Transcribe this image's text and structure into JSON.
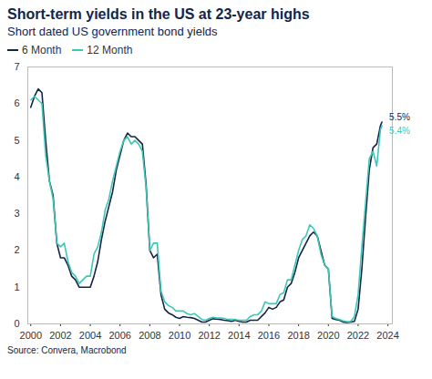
{
  "chart_data": {
    "type": "line",
    "title": "Short-term yields in the US at 23-year highs",
    "subtitle": "Short dated US government bond yields",
    "caption": "Source: Convera, Macrobond",
    "legend": "top-left",
    "grid": false,
    "data_labels": true,
    "x": [
      2000,
      2000.25,
      2000.5,
      2000.75,
      2001,
      2001.25,
      2001.5,
      2001.75,
      2002,
      2002.25,
      2002.5,
      2002.75,
      2003,
      2003.25,
      2003.5,
      2003.75,
      2004,
      2004.25,
      2004.5,
      2004.75,
      2005,
      2005.25,
      2005.5,
      2005.75,
      2006,
      2006.25,
      2006.5,
      2006.75,
      2007,
      2007.25,
      2007.5,
      2007.75,
      2008,
      2008.25,
      2008.5,
      2008.75,
      2009,
      2009.25,
      2009.5,
      2009.75,
      2010,
      2010.25,
      2010.5,
      2010.75,
      2011,
      2011.25,
      2011.5,
      2011.75,
      2012,
      2012.25,
      2012.5,
      2012.75,
      2013,
      2013.25,
      2013.5,
      2013.75,
      2014,
      2014.25,
      2014.5,
      2014.75,
      2015,
      2015.25,
      2015.5,
      2015.75,
      2016,
      2016.25,
      2016.5,
      2016.75,
      2017,
      2017.25,
      2017.5,
      2017.75,
      2018,
      2018.25,
      2018.5,
      2018.75,
      2019,
      2019.25,
      2019.5,
      2019.75,
      2020,
      2020.25,
      2020.5,
      2020.75,
      2021,
      2021.25,
      2021.5,
      2021.75,
      2022,
      2022.25,
      2022.5,
      2022.75,
      2023,
      2023.25,
      2023.5,
      2023.6
    ],
    "xlim": [
      1999.8,
      2024.3
    ],
    "xticks": [
      2000,
      2002,
      2004,
      2006,
      2008,
      2010,
      2012,
      2014,
      2016,
      2018,
      2020,
      2022,
      2024
    ],
    "ylim": [
      0,
      7
    ],
    "yticks": [
      0,
      1,
      2,
      3,
      4,
      5,
      6,
      7
    ],
    "series": [
      {
        "name": "6 Month",
        "color": "#14244a",
        "values": [
          5.9,
          6.2,
          6.4,
          6.3,
          5.0,
          3.9,
          3.5,
          2.2,
          1.8,
          1.8,
          1.6,
          1.3,
          1.2,
          1.0,
          1.0,
          1.0,
          1.0,
          1.3,
          1.7,
          2.3,
          2.8,
          3.2,
          3.6,
          4.2,
          4.6,
          5.0,
          5.2,
          5.1,
          5.1,
          5.0,
          4.9,
          3.8,
          2.0,
          1.8,
          1.9,
          0.8,
          0.4,
          0.3,
          0.25,
          0.18,
          0.15,
          0.2,
          0.18,
          0.17,
          0.15,
          0.1,
          0.05,
          0.05,
          0.1,
          0.14,
          0.13,
          0.12,
          0.1,
          0.09,
          0.07,
          0.1,
          0.07,
          0.05,
          0.05,
          0.1,
          0.1,
          0.1,
          0.2,
          0.3,
          0.45,
          0.4,
          0.45,
          0.6,
          0.65,
          1.0,
          1.1,
          1.4,
          1.8,
          2.0,
          2.2,
          2.4,
          2.5,
          2.4,
          2.0,
          1.6,
          1.5,
          0.15,
          0.12,
          0.1,
          0.05,
          0.04,
          0.05,
          0.07,
          0.4,
          1.5,
          2.9,
          4.2,
          4.8,
          4.9,
          5.4,
          5.5
        ],
        "value_labels": [
          null,
          null,
          null,
          null,
          null,
          null,
          null,
          null,
          null,
          null,
          null,
          null,
          null,
          null,
          null,
          null,
          null,
          null,
          null,
          null,
          null,
          null,
          null,
          null,
          null,
          null,
          null,
          null,
          null,
          null,
          null,
          null,
          null,
          null,
          null,
          null,
          null,
          null,
          null,
          null,
          null,
          null,
          null,
          null,
          null,
          null,
          null,
          null,
          null,
          null,
          null,
          null,
          null,
          null,
          null,
          null,
          null,
          null,
          null,
          null,
          null,
          null,
          null,
          null,
          null,
          null,
          null,
          null,
          null,
          null,
          null,
          null,
          null,
          null,
          null,
          null,
          null,
          null,
          null,
          null,
          null,
          null,
          null,
          null,
          null,
          null,
          null,
          null,
          null,
          null,
          null,
          null,
          null,
          null,
          null,
          "5.5%"
        ]
      },
      {
        "name": "12 Month",
        "color": "#3cc8b4",
        "values": [
          6.1,
          6.2,
          6.1,
          6.0,
          4.6,
          3.9,
          3.4,
          2.2,
          2.1,
          2.2,
          1.7,
          1.4,
          1.3,
          1.1,
          1.2,
          1.3,
          1.3,
          1.9,
          2.1,
          2.5,
          3.1,
          3.4,
          3.9,
          4.3,
          4.7,
          5.0,
          5.1,
          4.9,
          5.0,
          4.9,
          4.7,
          3.7,
          2.0,
          2.2,
          2.2,
          0.9,
          0.6,
          0.5,
          0.45,
          0.35,
          0.35,
          0.35,
          0.28,
          0.25,
          0.28,
          0.2,
          0.12,
          0.1,
          0.15,
          0.18,
          0.16,
          0.16,
          0.15,
          0.12,
          0.12,
          0.12,
          0.1,
          0.1,
          0.1,
          0.2,
          0.25,
          0.25,
          0.35,
          0.6,
          0.55,
          0.55,
          0.55,
          0.8,
          0.85,
          1.2,
          1.2,
          1.6,
          2.0,
          2.3,
          2.4,
          2.7,
          2.6,
          2.4,
          1.9,
          1.6,
          1.5,
          0.2,
          0.15,
          0.12,
          0.08,
          0.06,
          0.07,
          0.2,
          0.8,
          2.1,
          3.3,
          4.5,
          4.7,
          4.3,
          5.3,
          5.4
        ],
        "value_labels": [
          null,
          null,
          null,
          null,
          null,
          null,
          null,
          null,
          null,
          null,
          null,
          null,
          null,
          null,
          null,
          null,
          null,
          null,
          null,
          null,
          null,
          null,
          null,
          null,
          null,
          null,
          null,
          null,
          null,
          null,
          null,
          null,
          null,
          null,
          null,
          null,
          null,
          null,
          null,
          null,
          null,
          null,
          null,
          null,
          null,
          null,
          null,
          null,
          null,
          null,
          null,
          null,
          null,
          null,
          null,
          null,
          null,
          null,
          null,
          null,
          null,
          null,
          null,
          null,
          null,
          null,
          null,
          null,
          null,
          null,
          null,
          null,
          null,
          null,
          null,
          null,
          null,
          null,
          null,
          null,
          null,
          null,
          null,
          null,
          null,
          null,
          null,
          null,
          null,
          null,
          null,
          null,
          null,
          null,
          null,
          "5.4%"
        ]
      }
    ]
  }
}
